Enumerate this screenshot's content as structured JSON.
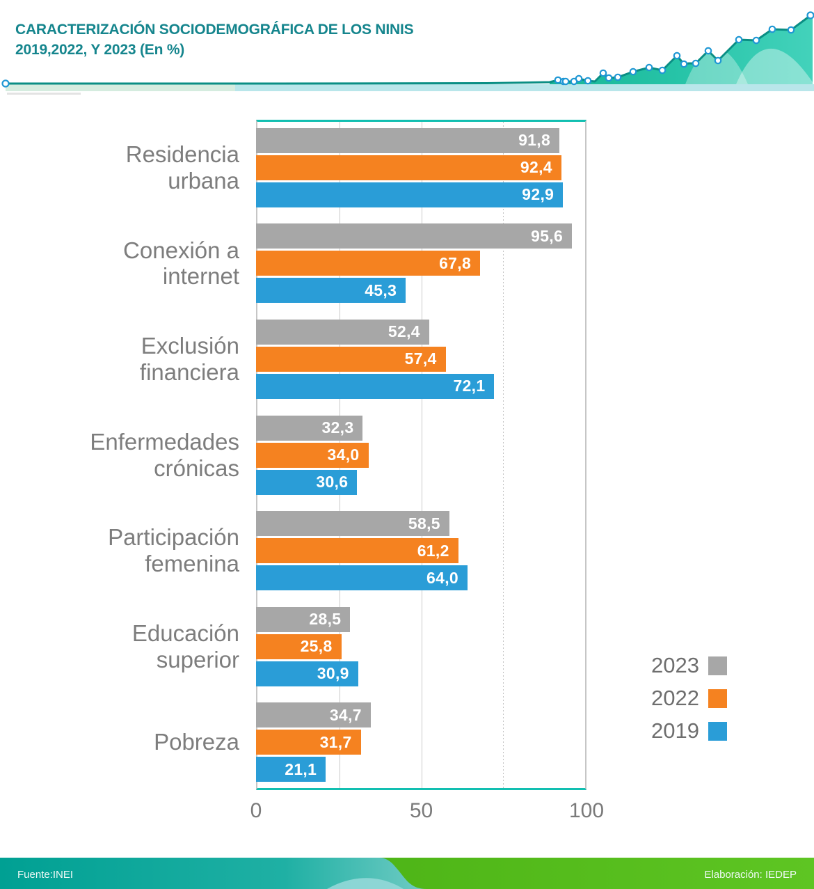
{
  "header": {
    "title_line1": "CARACTERIZACIÓN SOCIODEMOGRÁFICA DE LOS NINIS",
    "title_line2": "2019,2022, Y 2023 (En %)"
  },
  "chart_data": {
    "type": "bar",
    "orientation": "horizontal",
    "title": "CARACTERIZACIÓN SOCIODEMOGRÁFICA DE LOS NINIS 2019,2022, Y 2023 (En %)",
    "unit": "%",
    "categories": [
      "Residencia urbana",
      "Conexión a internet",
      "Exclusión financiera",
      "Enfermedades crónicas",
      "Participación femenina",
      "Educación superior",
      "Pobreza"
    ],
    "category_lines": [
      [
        "Residencia",
        "urbana"
      ],
      [
        "Conexión a",
        "internet"
      ],
      [
        "Exclusión",
        "financiera"
      ],
      [
        "Enfermedades",
        "crónicas"
      ],
      [
        "Participación",
        "femenina"
      ],
      [
        "Educación",
        "superior"
      ],
      [
        "Pobreza"
      ]
    ],
    "series": [
      {
        "name": "2023",
        "color": "#a7a7a7",
        "values": [
          91.8,
          95.6,
          52.4,
          32.3,
          58.5,
          28.5,
          34.7
        ],
        "labels": [
          "91,8",
          "95,6",
          "52,4",
          "32,3",
          "58,5",
          "28,5",
          "34,7"
        ]
      },
      {
        "name": "2022",
        "color": "#f58220",
        "values": [
          92.4,
          67.8,
          57.4,
          34.0,
          61.2,
          25.8,
          31.7
        ],
        "labels": [
          "92,4",
          "67,8",
          "57,4",
          "34,0",
          "61,2",
          "25,8",
          "31,7"
        ]
      },
      {
        "name": "2019",
        "color": "#2a9dd7",
        "values": [
          92.9,
          45.3,
          72.1,
          30.6,
          64.0,
          30.9,
          21.1
        ],
        "labels": [
          "92,9",
          "45,3",
          "72,1",
          "30,6",
          "64,0",
          "30,9",
          "21,1"
        ]
      }
    ],
    "xlim": [
      0,
      100
    ],
    "xticks": [
      {
        "value": 0,
        "label": "0"
      },
      {
        "value": 50,
        "label": "50"
      },
      {
        "value": 100,
        "label": "100"
      }
    ],
    "grid_x": [
      25,
      50,
      75
    ],
    "grid_dotted": [
      75
    ],
    "grid": "on",
    "legend_position": "right-bottom"
  },
  "legend": {
    "items": [
      {
        "label": "2023",
        "color": "#a7a7a7"
      },
      {
        "label": "2022",
        "color": "#f58220"
      },
      {
        "label": "2019",
        "color": "#2a9dd7"
      }
    ]
  },
  "footer": {
    "source": "Fuente:INEI",
    "elaboration": "Elaboración: IEDEP"
  },
  "colors": {
    "title": "#15858d",
    "axis_teal": "#12bfb1",
    "bar_gray": "#a7a7a7",
    "bar_orange": "#f58220",
    "bar_blue": "#2a9dd7",
    "footer_teal": "#00a093",
    "footer_green": "#55bd1e"
  }
}
